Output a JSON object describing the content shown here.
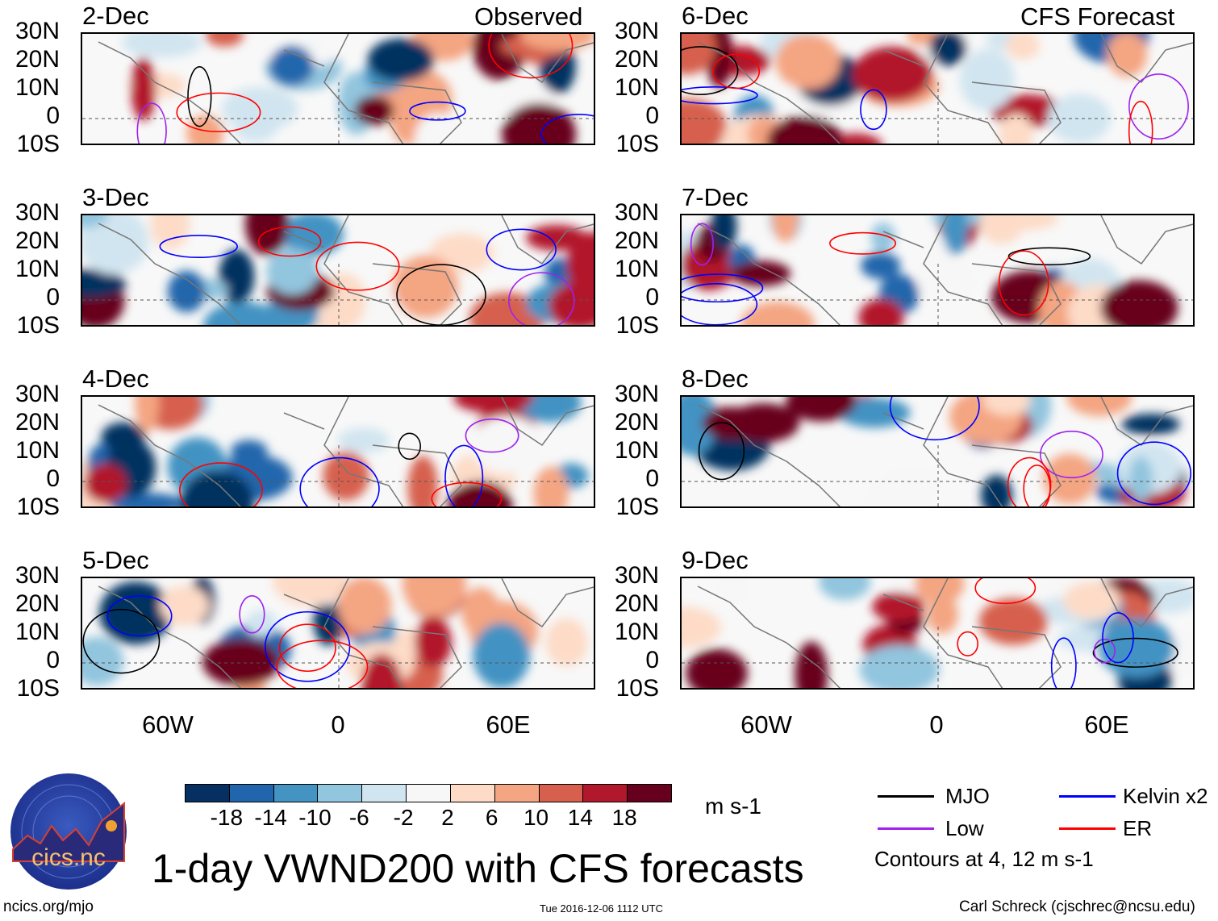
{
  "headers": {
    "left": "Observed",
    "right": "CFS Forecast"
  },
  "panels": [
    {
      "date": "2-Dec",
      "column": "left"
    },
    {
      "date": "3-Dec",
      "column": "left"
    },
    {
      "date": "4-Dec",
      "column": "left"
    },
    {
      "date": "5-Dec",
      "column": "left"
    },
    {
      "date": "6-Dec",
      "column": "right"
    },
    {
      "date": "7-Dec",
      "column": "right"
    },
    {
      "date": "8-Dec",
      "column": "right"
    },
    {
      "date": "9-Dec",
      "column": "right"
    }
  ],
  "lat_labels": [
    "30N",
    "20N",
    "10N",
    "0",
    "10S"
  ],
  "lon_labels": [
    "60W",
    "0",
    "60E"
  ],
  "colorbar": {
    "colors": [
      "#053061",
      "#2166ac",
      "#4393c3",
      "#92c5de",
      "#d1e5f0",
      "#f7f7f7",
      "#fddbc7",
      "#f4a582",
      "#d6604d",
      "#b2182b",
      "#67001f"
    ],
    "labels": [
      "-18",
      "-14",
      "-10",
      "-6",
      "-2",
      "2",
      "6",
      "10",
      "14",
      "18"
    ],
    "units": "m s-1"
  },
  "legend": {
    "items": [
      {
        "label": "MJO",
        "color": "#000000"
      },
      {
        "label": "Kelvin x2",
        "color": "#0000ff"
      },
      {
        "label": "Low",
        "color": "#a020f0"
      },
      {
        "label": "ER",
        "color": "#ff0000"
      }
    ],
    "note": "Contours at 4, 12 m s-1"
  },
  "title": "1-day VWND200 with CFS forecasts",
  "logo": {
    "text": "cics.nc",
    "ring_text": "Cooperative Institute for Climate and Satellites"
  },
  "footer": {
    "left": "ncics.org/mjo",
    "center": "Tue 2016-12-06 1112 UTC",
    "right": "Carl Schreck (cjschrec@ncsu.edu)"
  }
}
